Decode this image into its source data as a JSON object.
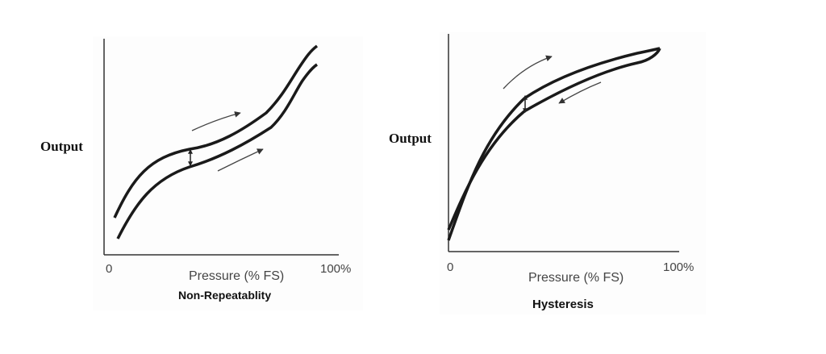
{
  "left_chart": {
    "ylabel": "Output",
    "tick_start": "0",
    "tick_end": "100%",
    "xlabel": "Pressure (% FS)",
    "caption": "Non-Repeatablity"
  },
  "right_chart": {
    "ylabel": "Output",
    "tick_start": "0",
    "tick_end": "100%",
    "xlabel": "Pressure (% FS)",
    "caption": "Hysteresis"
  },
  "colors": {
    "curve": "#1a1a1a",
    "axis": "#333333",
    "arrow": "#444444"
  }
}
